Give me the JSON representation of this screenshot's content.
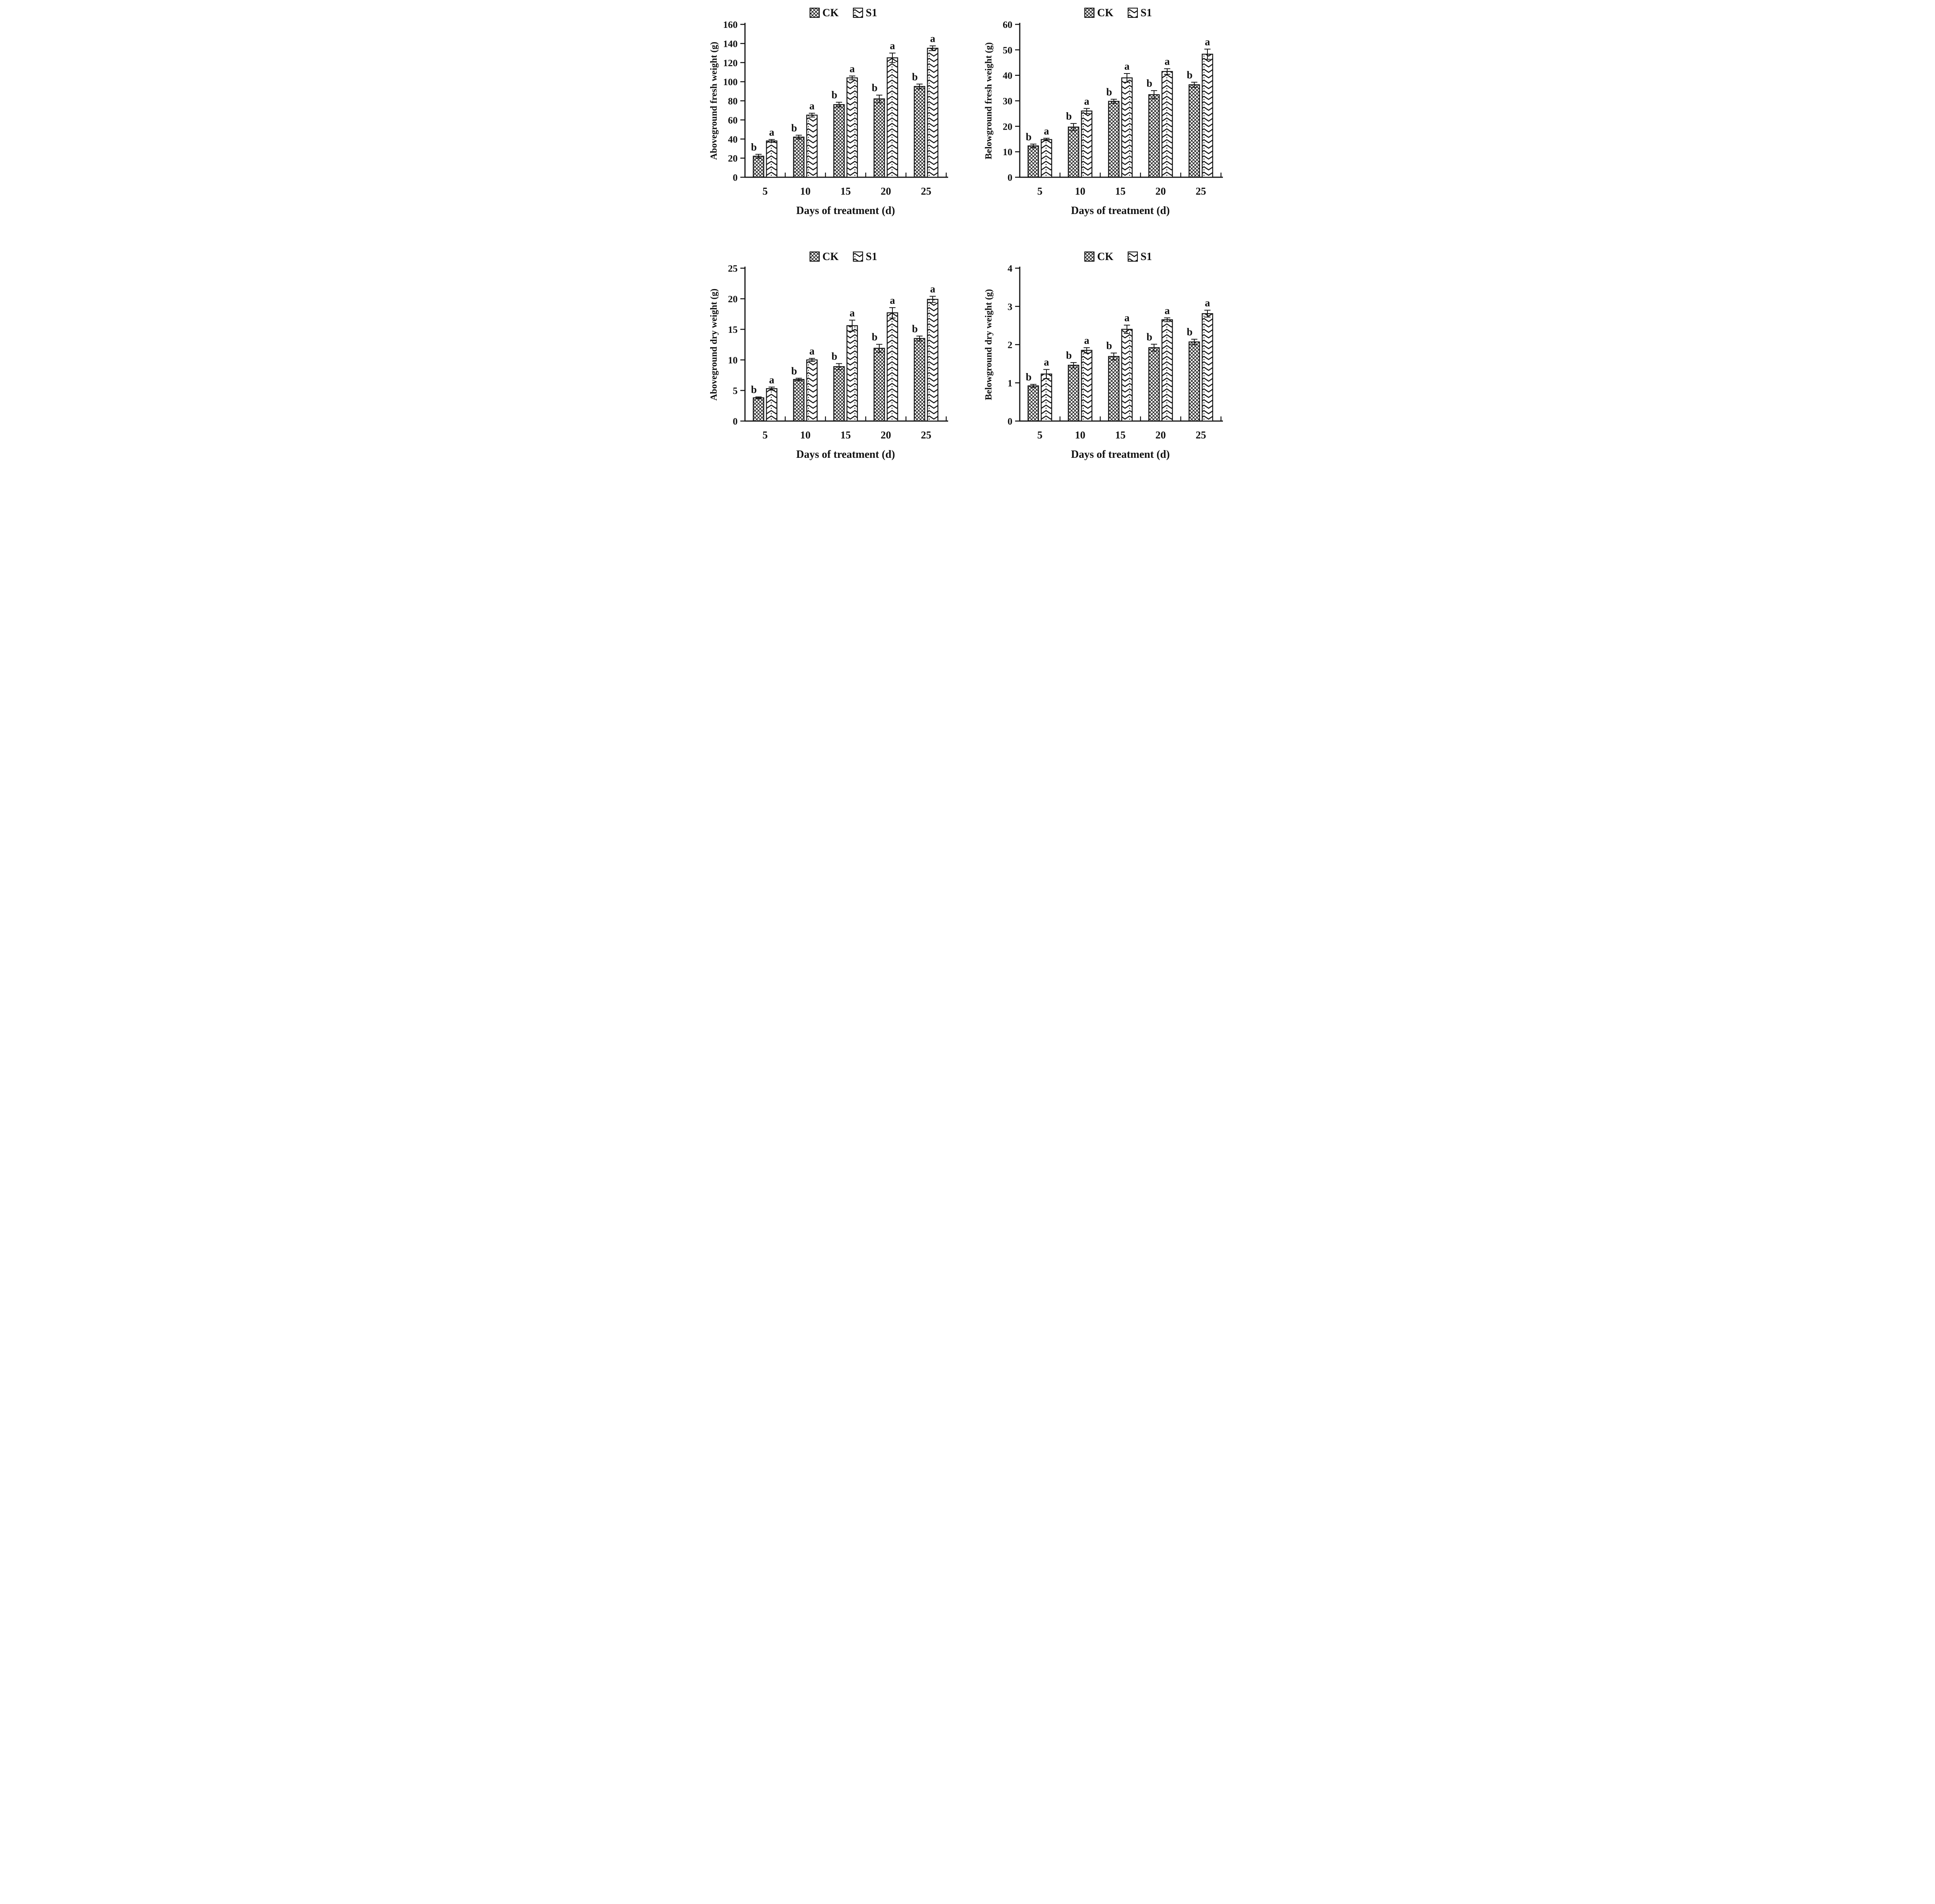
{
  "figure": {
    "background": "#ffffff",
    "ink_color": "#111111",
    "x_axis_label": "Days of treatment (d)",
    "categories": [
      "5",
      "10",
      "15",
      "20",
      "25"
    ],
    "legend": [
      {
        "label": "CK",
        "pattern": "crosshatch"
      },
      {
        "label": "S1",
        "pattern": "chevron"
      }
    ],
    "significance_letters": {
      "CK": "b",
      "S1": "a"
    }
  },
  "chart_data": [
    {
      "type": "bar",
      "panel": "top-left",
      "title": "",
      "ylabel": "Aboveground fresh weight (g)",
      "xlabel": "Days of treatment (d)",
      "categories": [
        "5",
        "10",
        "15",
        "20",
        "25"
      ],
      "ylim": [
        0,
        160
      ],
      "ytick_step": 20,
      "grid": false,
      "legend_position": "top-center",
      "series": [
        {
          "name": "CK",
          "pattern": "crosshatch",
          "sig_letter": "b",
          "values": [
            22,
            42,
            76,
            82,
            95
          ],
          "errors": [
            2,
            2,
            2.5,
            4,
            2.5
          ]
        },
        {
          "name": "S1",
          "pattern": "chevron",
          "sig_letter": "a",
          "values": [
            38,
            65,
            104,
            125,
            135
          ],
          "errors": [
            1.5,
            2,
            2,
            5,
            2.5
          ]
        }
      ]
    },
    {
      "type": "bar",
      "panel": "top-right",
      "title": "",
      "ylabel": "Belowground fresh weight (g)",
      "xlabel": "Days of treatment (d)",
      "categories": [
        "5",
        "10",
        "15",
        "20",
        "25"
      ],
      "ylim": [
        0,
        60
      ],
      "ytick_step": 10,
      "grid": false,
      "legend_position": "top-center",
      "series": [
        {
          "name": "CK",
          "pattern": "crosshatch",
          "sig_letter": "b",
          "values": [
            12.3,
            19.7,
            29.8,
            32.4,
            36.3
          ],
          "errors": [
            0.7,
            1.4,
            0.8,
            1.6,
            1.0
          ]
        },
        {
          "name": "S1",
          "pattern": "chevron",
          "sig_letter": "a",
          "values": [
            14.8,
            26.0,
            39.0,
            41.5,
            48.3
          ],
          "errors": [
            0.5,
            1.0,
            1.7,
            1.1,
            2.0
          ]
        }
      ]
    },
    {
      "type": "bar",
      "panel": "bottom-left",
      "title": "",
      "ylabel": "Aboveground dry weight (g)",
      "xlabel": "Days of treatment (d)",
      "categories": [
        "5",
        "10",
        "15",
        "20",
        "25"
      ],
      "ylim": [
        0,
        25
      ],
      "ytick_step": 5,
      "grid": false,
      "legend_position": "top-center",
      "series": [
        {
          "name": "CK",
          "pattern": "crosshatch",
          "sig_letter": "b",
          "values": [
            3.8,
            6.8,
            8.9,
            11.9,
            13.5
          ],
          "errors": [
            0.15,
            0.2,
            0.5,
            0.65,
            0.4
          ]
        },
        {
          "name": "S1",
          "pattern": "chevron",
          "sig_letter": "a",
          "values": [
            5.3,
            10.0,
            15.6,
            17.7,
            19.9
          ],
          "errors": [
            0.25,
            0.25,
            0.9,
            0.85,
            0.5
          ]
        }
      ]
    },
    {
      "type": "bar",
      "panel": "bottom-right",
      "title": "",
      "ylabel": "Belowground dry weight (g)",
      "xlabel": "Days of treatment (d)",
      "categories": [
        "5",
        "10",
        "15",
        "20",
        "25"
      ],
      "ylim": [
        0,
        4
      ],
      "ytick_step": 1,
      "grid": false,
      "legend_position": "top-center",
      "series": [
        {
          "name": "CK",
          "pattern": "crosshatch",
          "sig_letter": "b",
          "values": [
            0.92,
            1.46,
            1.69,
            1.92,
            2.07
          ],
          "errors": [
            0.04,
            0.07,
            0.09,
            0.09,
            0.07
          ]
        },
        {
          "name": "S1",
          "pattern": "chevron",
          "sig_letter": "a",
          "values": [
            1.23,
            1.85,
            2.4,
            2.65,
            2.81
          ],
          "errors": [
            0.12,
            0.07,
            0.11,
            0.05,
            0.09
          ]
        }
      ]
    }
  ]
}
